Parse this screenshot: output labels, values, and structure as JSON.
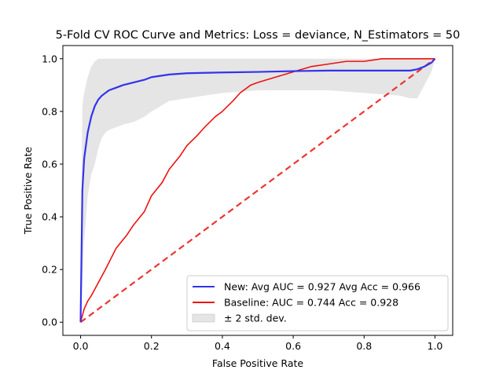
{
  "chart_data": {
    "type": "line",
    "title": "5-Fold CV ROC Curve and Metrics: Loss = deviance, N_Estimators = 50",
    "xlabel": "False Positive Rate",
    "ylabel": "True Positive Rate",
    "xlim": [
      -0.05,
      1.05
    ],
    "ylim": [
      -0.05,
      1.05
    ],
    "xticks": [
      0.0,
      0.2,
      0.4,
      0.6,
      0.8,
      1.0
    ],
    "yticks": [
      0.0,
      0.2,
      0.4,
      0.6,
      0.8,
      1.0
    ],
    "xtick_labels": [
      "0.0",
      "0.2",
      "0.4",
      "0.6",
      "0.8",
      "1.0"
    ],
    "ytick_labels": [
      "0.0",
      "0.2",
      "0.4",
      "0.6",
      "0.8",
      "1.0"
    ],
    "grid": false,
    "legend_position": "lower-right",
    "series": [
      {
        "name": "New: Avg AUC = 0.927 Avg Acc = 0.966",
        "kind": "line",
        "color": "#3333ee",
        "x": [
          0.0,
          0.005,
          0.01,
          0.02,
          0.03,
          0.04,
          0.05,
          0.06,
          0.07,
          0.08,
          0.1,
          0.12,
          0.15,
          0.18,
          0.2,
          0.25,
          0.3,
          0.4,
          0.5,
          0.6,
          0.7,
          0.8,
          0.9,
          0.93,
          0.95,
          0.97,
          0.99,
          1.0
        ],
        "y": [
          0.0,
          0.5,
          0.62,
          0.72,
          0.78,
          0.82,
          0.845,
          0.86,
          0.87,
          0.88,
          0.89,
          0.9,
          0.91,
          0.92,
          0.93,
          0.94,
          0.945,
          0.948,
          0.95,
          0.953,
          0.955,
          0.955,
          0.955,
          0.955,
          0.96,
          0.97,
          0.985,
          1.0
        ]
      },
      {
        "name": "Baseline: AUC = 0.744 Acc = 0.928",
        "kind": "line",
        "color": "#ee1111",
        "x": [
          0.0,
          0.01,
          0.02,
          0.03,
          0.05,
          0.07,
          0.1,
          0.13,
          0.15,
          0.18,
          0.2,
          0.23,
          0.25,
          0.28,
          0.3,
          0.33,
          0.35,
          0.38,
          0.4,
          0.43,
          0.45,
          0.48,
          0.5,
          0.55,
          0.6,
          0.65,
          0.7,
          0.75,
          0.8,
          0.85,
          0.9,
          0.95,
          1.0
        ],
        "y": [
          0.0,
          0.05,
          0.08,
          0.1,
          0.15,
          0.2,
          0.28,
          0.33,
          0.37,
          0.42,
          0.48,
          0.53,
          0.58,
          0.63,
          0.67,
          0.71,
          0.74,
          0.78,
          0.8,
          0.84,
          0.87,
          0.9,
          0.91,
          0.93,
          0.95,
          0.97,
          0.98,
          0.99,
          0.99,
          1.0,
          1.0,
          1.0,
          1.0
        ]
      },
      {
        "name": "",
        "kind": "dashed-line",
        "color": "#ee3333",
        "x": [
          0.0,
          1.0
        ],
        "y": [
          0.0,
          1.0
        ]
      },
      {
        "name": "± 2 std. dev.",
        "kind": "band",
        "color": "#cccccc",
        "x": [
          0.0,
          0.005,
          0.01,
          0.02,
          0.03,
          0.04,
          0.05,
          0.06,
          0.07,
          0.08,
          0.1,
          0.12,
          0.15,
          0.18,
          0.2,
          0.25,
          0.3,
          0.4,
          0.5,
          0.6,
          0.7,
          0.8,
          0.9,
          0.93,
          0.95,
          0.97,
          0.99,
          1.0
        ],
        "upper": [
          0.0,
          0.82,
          0.87,
          0.93,
          0.97,
          0.99,
          1.0,
          1.0,
          1.0,
          1.0,
          1.0,
          1.0,
          1.0,
          1.0,
          1.0,
          1.0,
          1.0,
          1.0,
          1.0,
          1.0,
          1.0,
          1.0,
          1.0,
          1.0,
          1.0,
          1.0,
          1.0,
          1.0
        ],
        "lower": [
          0.0,
          0.15,
          0.3,
          0.48,
          0.56,
          0.6,
          0.66,
          0.7,
          0.72,
          0.73,
          0.74,
          0.75,
          0.76,
          0.78,
          0.8,
          0.84,
          0.85,
          0.87,
          0.88,
          0.88,
          0.88,
          0.87,
          0.86,
          0.85,
          0.85,
          0.9,
          0.95,
          1.0
        ]
      }
    ]
  }
}
